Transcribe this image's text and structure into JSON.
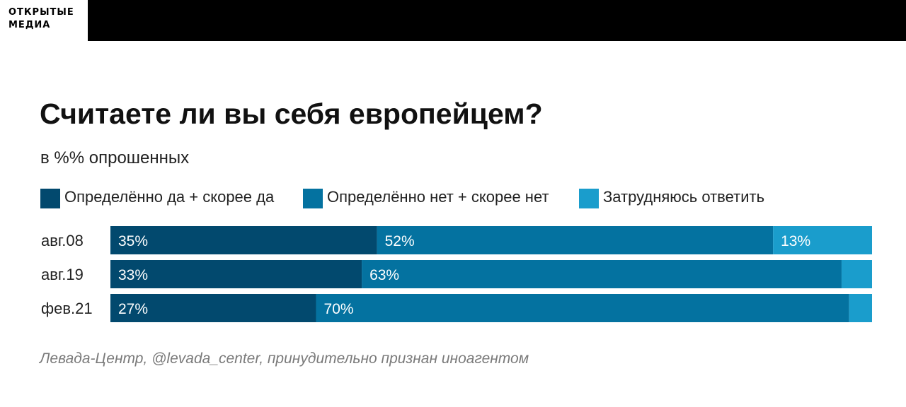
{
  "header": {
    "logo_line1": "ОТКРЫТЫЕ",
    "logo_line2": "МЕДИА"
  },
  "chart_data": {
    "type": "bar",
    "orientation": "horizontal",
    "stacked": true,
    "percent": true,
    "title": "Считаете ли вы себя европейцем?",
    "subtitle": "в %% опрошенных",
    "categories": [
      "авг.08",
      "авг.19",
      "фев.21"
    ],
    "series": [
      {
        "name": "Определённо да + скорее да",
        "values": [
          35,
          33,
          27
        ],
        "labels": [
          "35%",
          "33%",
          "27%"
        ],
        "color": "#02496e"
      },
      {
        "name": "Определённо нет + скорее нет",
        "values": [
          52,
          63,
          70
        ],
        "labels": [
          "52%",
          "63%",
          "70%"
        ],
        "color": "#0472a0"
      },
      {
        "name": "Затрудняюсь ответить",
        "values": [
          13,
          4,
          3
        ],
        "labels": [
          "13%",
          "",
          ""
        ],
        "color": "#1a9dcc"
      }
    ],
    "legend_position": "top",
    "grid": false,
    "source": "Левада-Центр, @levada_center, принудительно признан иноагентом"
  }
}
